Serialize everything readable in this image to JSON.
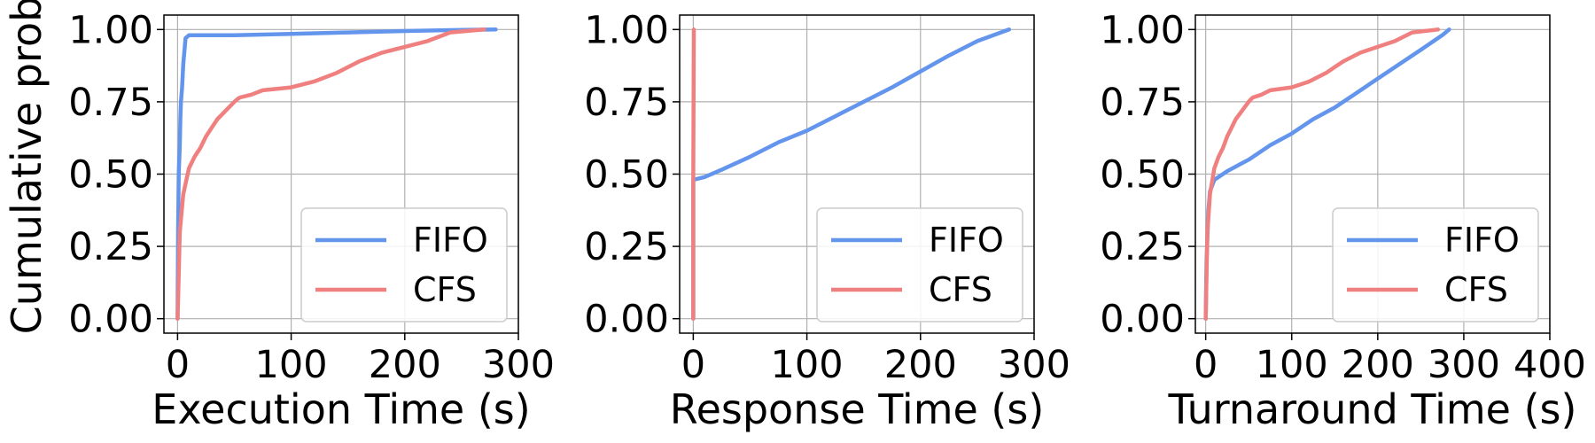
{
  "colors": {
    "FIFO": "#6495ED",
    "CFS": "#F08080",
    "grid": "#b0b0b0"
  },
  "chart_data": [
    {
      "type": "line",
      "title": "",
      "xlabel": "Execution Time (s)",
      "ylabel": "Cumulative prob",
      "xlim": [
        -12,
        300
      ],
      "ylim": [
        -0.05,
        1.05
      ],
      "xticks": [
        0,
        100,
        200,
        300
      ],
      "yticks": [
        "0.00",
        "0.25",
        "0.50",
        "0.75",
        "1.00"
      ],
      "grid": true,
      "legend": "lower-right",
      "series": [
        {
          "name": "FIFO",
          "x": [
            0,
            0.5,
            1,
            2,
            2.5,
            3,
            4,
            5,
            7,
            10,
            50,
            100,
            150,
            200,
            240,
            280
          ],
          "y": [
            0,
            0.3,
            0.5,
            0.6,
            0.7,
            0.75,
            0.8,
            0.88,
            0.97,
            0.98,
            0.98,
            0.985,
            0.99,
            0.995,
            0.998,
            1.0
          ]
        },
        {
          "name": "CFS",
          "x": [
            0,
            1,
            2,
            5,
            10,
            15,
            20,
            25,
            30,
            35,
            40,
            45,
            50,
            53,
            55,
            65,
            75,
            100,
            120,
            140,
            150,
            155,
            160,
            180,
            200,
            220,
            240,
            270
          ],
          "y": [
            0,
            0.15,
            0.3,
            0.43,
            0.52,
            0.56,
            0.59,
            0.63,
            0.66,
            0.69,
            0.71,
            0.73,
            0.75,
            0.76,
            0.765,
            0.775,
            0.79,
            0.8,
            0.82,
            0.85,
            0.87,
            0.88,
            0.89,
            0.92,
            0.94,
            0.96,
            0.99,
            1.0
          ]
        }
      ]
    },
    {
      "type": "line",
      "title": "",
      "xlabel": "Response Time (s)",
      "ylabel": "",
      "xlim": [
        -12,
        300
      ],
      "ylim": [
        -0.05,
        1.05
      ],
      "xticks": [
        0,
        100,
        200,
        300
      ],
      "yticks": [
        "0.00",
        "0.25",
        "0.50",
        "0.75",
        "1.00"
      ],
      "grid": true,
      "legend": "lower-right",
      "series": [
        {
          "name": "FIFO",
          "x": [
            0,
            0,
            10,
            25,
            50,
            75,
            100,
            125,
            150,
            175,
            200,
            225,
            250,
            278
          ],
          "y": [
            0,
            0.48,
            0.49,
            0.515,
            0.56,
            0.61,
            0.65,
            0.7,
            0.75,
            0.8,
            0.855,
            0.91,
            0.96,
            1.0
          ]
        },
        {
          "name": "CFS",
          "x": [
            0,
            0,
            0.5
          ],
          "y": [
            0,
            0.5,
            1.0
          ]
        }
      ]
    },
    {
      "type": "line",
      "title": "",
      "xlabel": "Turnaround Time (s)",
      "ylabel": "",
      "xlim": [
        -12,
        400
      ],
      "ylim": [
        -0.05,
        1.05
      ],
      "xticks": [
        0,
        100,
        200,
        300,
        400
      ],
      "yticks": [
        "0.00",
        "0.25",
        "0.50",
        "0.75",
        "1.00"
      ],
      "grid": true,
      "legend": "lower-right",
      "series": [
        {
          "name": "FIFO",
          "x": [
            0,
            1,
            3,
            5,
            10,
            25,
            50,
            75,
            100,
            125,
            150,
            175,
            200,
            225,
            250,
            275,
            283
          ],
          "y": [
            0,
            0.2,
            0.37,
            0.44,
            0.48,
            0.51,
            0.55,
            0.6,
            0.64,
            0.69,
            0.73,
            0.78,
            0.83,
            0.88,
            0.93,
            0.98,
            1.0
          ]
        },
        {
          "name": "CFS",
          "x": [
            0,
            1,
            2,
            5,
            10,
            15,
            20,
            25,
            30,
            35,
            40,
            45,
            50,
            53,
            55,
            65,
            75,
            100,
            120,
            140,
            150,
            155,
            160,
            180,
            200,
            220,
            240,
            270
          ],
          "y": [
            0,
            0.15,
            0.3,
            0.43,
            0.52,
            0.56,
            0.59,
            0.63,
            0.66,
            0.69,
            0.71,
            0.73,
            0.75,
            0.76,
            0.765,
            0.775,
            0.79,
            0.8,
            0.82,
            0.85,
            0.87,
            0.88,
            0.89,
            0.92,
            0.94,
            0.96,
            0.99,
            1.0
          ]
        }
      ]
    }
  ]
}
